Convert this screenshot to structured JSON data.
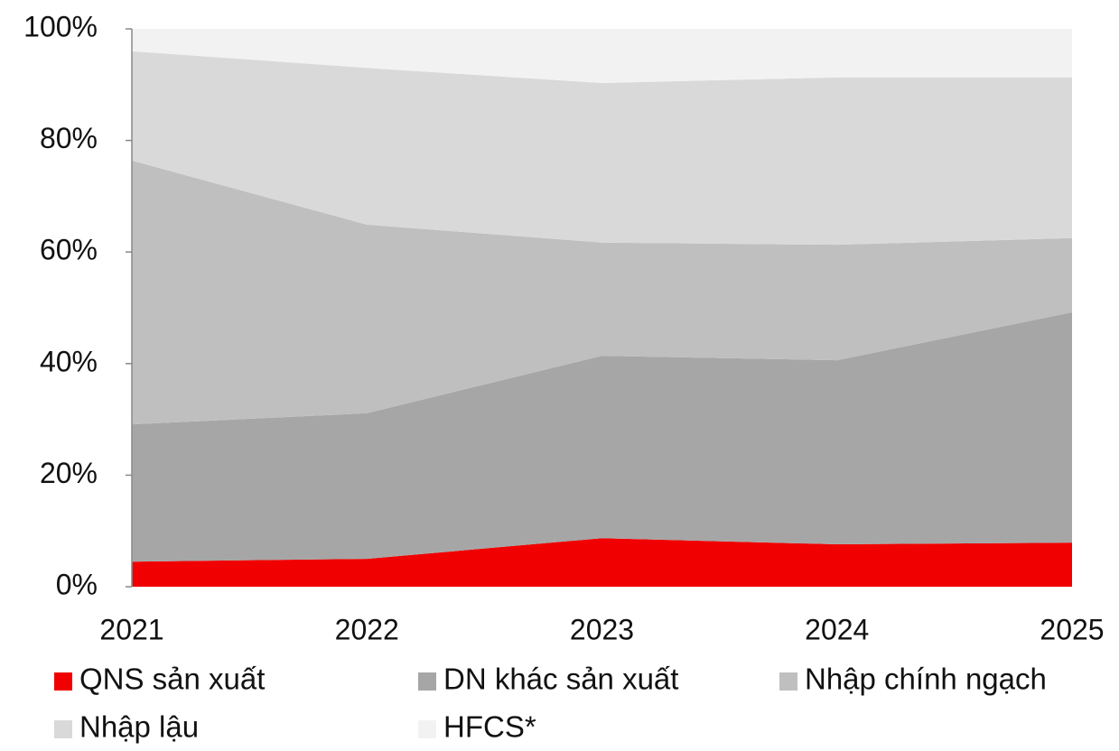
{
  "chart_data": {
    "type": "stacked_area",
    "categories": [
      "2021",
      "2022",
      "2023",
      "2024",
      "2025"
    ],
    "series": [
      {
        "name": "QNS sản xuất",
        "color": "#f00000",
        "values": [
          4.5,
          5.0,
          8.7,
          7.6,
          7.9
        ]
      },
      {
        "name": "DN khác sản xuất",
        "color": "#a6a6a6",
        "values": [
          24.6,
          26.1,
          32.7,
          33.0,
          41.3
        ]
      },
      {
        "name": "Nhập chính ngạch",
        "color": "#bfbfbf",
        "values": [
          47.3,
          33.8,
          20.3,
          20.7,
          13.3
        ]
      },
      {
        "name": "Nhập lậu",
        "color": "#d9d9d9",
        "values": [
          19.6,
          28.1,
          28.6,
          30.0,
          28.8
        ]
      },
      {
        "name": "HFCS*",
        "color": "#f2f2f2",
        "values": [
          4.0,
          7.0,
          9.7,
          8.7,
          8.7
        ]
      }
    ],
    "ylim": [
      0,
      100
    ],
    "yticks": [
      {
        "value": 0,
        "label": "0%"
      },
      {
        "value": 20,
        "label": "20%"
      },
      {
        "value": 40,
        "label": "40%"
      },
      {
        "value": 60,
        "label": "60%"
      },
      {
        "value": 80,
        "label": "80%"
      },
      {
        "value": 100,
        "label": "100%"
      }
    ],
    "grid": false,
    "legend": "bottom"
  }
}
